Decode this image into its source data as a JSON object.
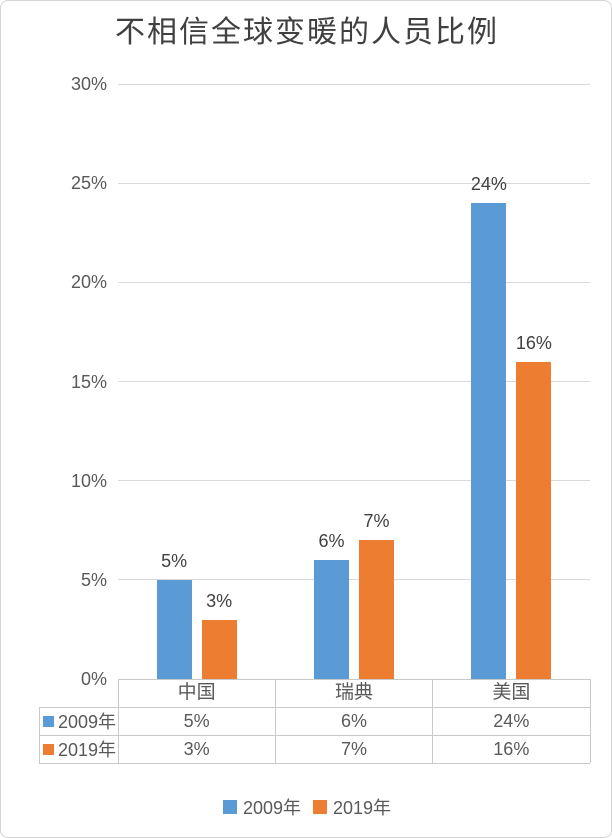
{
  "window": {
    "background": "#ffffff",
    "border_color": "#d4d4d4"
  },
  "chart_data": {
    "type": "bar",
    "title": "不相信全球变暖的人员比例",
    "categories": [
      "中国",
      "瑞典",
      "美国"
    ],
    "series": [
      {
        "name": "2009年",
        "color": "#5B9BD5",
        "values": [
          5,
          6,
          24
        ],
        "labels": [
          "5%",
          "6%",
          "24%"
        ]
      },
      {
        "name": "2019年",
        "color": "#ED7D31",
        "values": [
          3,
          7,
          16
        ],
        "labels": [
          "3%",
          "7%",
          "16%"
        ]
      }
    ],
    "xlabel": "",
    "ylabel": "",
    "ylim": [
      0,
      30
    ],
    "grid": true,
    "yticks": [
      {
        "value": 0,
        "label": "0%"
      },
      {
        "value": 5,
        "label": "5%"
      },
      {
        "value": 10,
        "label": "10%"
      },
      {
        "value": 15,
        "label": "15%"
      },
      {
        "value": 20,
        "label": "20%"
      },
      {
        "value": 25,
        "label": "25%"
      },
      {
        "value": 30,
        "label": "30%"
      }
    ],
    "legend_position": "bottom",
    "legend": [
      "2009年",
      "2019年"
    ],
    "data_table": {
      "column_headers": [
        "中国",
        "瑞典",
        "美国"
      ],
      "rows": [
        {
          "label": "2009年",
          "values": [
            "5%",
            "6%",
            "24%"
          ]
        },
        {
          "label": "2019年",
          "values": [
            "3%",
            "7%",
            "16%"
          ]
        }
      ]
    },
    "colors": {
      "grid": "#D9D9D9",
      "table_border": "#C9C9C9",
      "axis_text": "#595959",
      "label_text": "#404040",
      "title_text": "#404040"
    }
  }
}
